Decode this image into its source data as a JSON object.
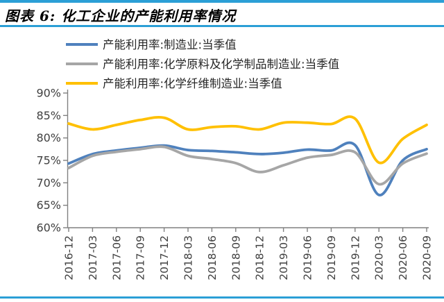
{
  "page": {
    "title": "图表 6: 化工企业的产能利用率情况",
    "accent_rule_color": "#2B9FD6"
  },
  "chart_data": {
    "type": "line",
    "title": "图表 6: 化工企业的产能利用率情况",
    "xlabel": "",
    "ylabel": "",
    "ylim": [
      60,
      90
    ],
    "y_tick_step": 5,
    "y_tick_labels": [
      "60%",
      "65%",
      "70%",
      "75%",
      "80%",
      "85%",
      "90%"
    ],
    "grid": false,
    "legend_position": "top-left",
    "axis_color": "#808080",
    "tick_label_color": "#404040",
    "legend_text_color": "#262626",
    "categories": [
      "2016-12",
      "2017-03",
      "2017-06",
      "2017-09",
      "2017-12",
      "2018-03",
      "2018-06",
      "2018-09",
      "2018-12",
      "2019-03",
      "2019-06",
      "2019-09",
      "2019-12",
      "2020-03",
      "2020-06",
      "2020-09"
    ],
    "series": [
      {
        "name": "产能利用率:制造业:当季值",
        "color": "#4F81BD",
        "values": [
          74.3,
          76.4,
          77.2,
          77.8,
          78.3,
          77.3,
          77.1,
          76.8,
          76.4,
          76.7,
          77.4,
          77.2,
          78.4,
          67.3,
          75.0,
          77.5
        ]
      },
      {
        "name": "产能利用率:化学原料及化学制品制造业:当季值",
        "color": "#A6A6A6",
        "values": [
          73.3,
          76.0,
          76.9,
          77.5,
          78.0,
          76.0,
          75.3,
          74.4,
          72.4,
          73.9,
          75.6,
          76.2,
          76.8,
          69.7,
          74.3,
          76.5
        ]
      },
      {
        "name": "产能利用率:化学纤维制造业:当季值",
        "color": "#FFC000",
        "values": [
          83.2,
          81.9,
          82.9,
          84.0,
          84.5,
          81.9,
          82.4,
          82.6,
          81.9,
          83.4,
          83.4,
          83.1,
          84.3,
          74.5,
          79.8,
          82.9
        ]
      }
    ]
  }
}
